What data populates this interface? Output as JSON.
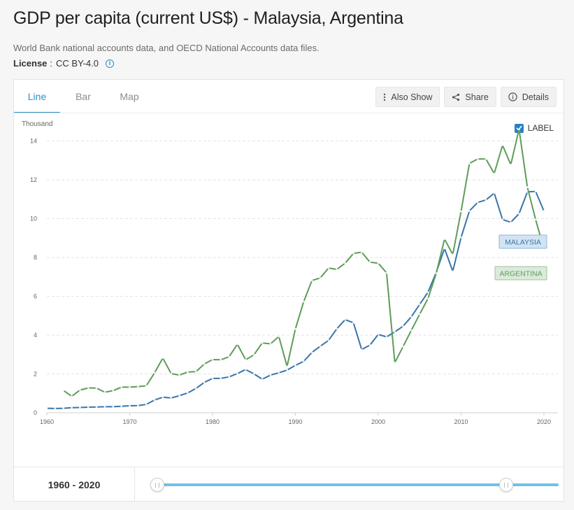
{
  "header": {
    "title": "GDP per capita (current US$) - Malaysia, Argentina",
    "source": "World Bank national accounts data, and OECD National Accounts data files.",
    "license_label": "License",
    "license_sep": ":",
    "license_value": "CC BY-4.0",
    "info_icon": "info-icon"
  },
  "tabs": [
    {
      "label": "Line",
      "active": true
    },
    {
      "label": "Bar",
      "active": false
    },
    {
      "label": "Map",
      "active": false
    }
  ],
  "actions": {
    "also_show": "Also Show",
    "share": "Share",
    "details": "Details"
  },
  "chart_controls": {
    "label_toggle": "LABEL",
    "label_checked": true
  },
  "range": {
    "label": "1960 - 2020",
    "start_year": 1960,
    "end_year": 2020
  },
  "colors": {
    "malaysia": "#3a75a8",
    "argentina": "#5e9c5a",
    "accent": "#2a8fcc"
  },
  "chart_data": {
    "type": "line",
    "title": "",
    "ylabel": "Thousand",
    "xlabel": "",
    "xlim": [
      1960,
      2020
    ],
    "ylim": [
      0,
      15
    ],
    "x_ticks": [
      1960,
      1970,
      1980,
      1990,
      2000,
      2010,
      2020
    ],
    "y_ticks": [
      0,
      2,
      4,
      6,
      8,
      10,
      12,
      14
    ],
    "grid": "horizontal",
    "series": [
      {
        "name": "MALAYSIA",
        "color": "#3a75a8",
        "x": [
          1960,
          1961,
          1962,
          1963,
          1964,
          1965,
          1966,
          1967,
          1968,
          1969,
          1970,
          1971,
          1972,
          1973,
          1974,
          1975,
          1976,
          1977,
          1978,
          1979,
          1980,
          1981,
          1982,
          1983,
          1984,
          1985,
          1986,
          1987,
          1988,
          1989,
          1990,
          1991,
          1992,
          1993,
          1994,
          1995,
          1996,
          1997,
          1998,
          1999,
          2000,
          2001,
          2002,
          2003,
          2004,
          2005,
          2006,
          2007,
          2008,
          2009,
          2010,
          2011,
          2012,
          2013,
          2014,
          2015,
          2016,
          2017,
          2018,
          2019,
          2020
        ],
        "values": [
          0.23,
          0.22,
          0.23,
          0.26,
          0.27,
          0.29,
          0.3,
          0.31,
          0.31,
          0.33,
          0.36,
          0.37,
          0.43,
          0.66,
          0.8,
          0.76,
          0.88,
          1.02,
          1.25,
          1.56,
          1.77,
          1.77,
          1.85,
          2.02,
          2.23,
          2.0,
          1.73,
          1.94,
          2.06,
          2.2,
          2.44,
          2.65,
          3.11,
          3.43,
          3.73,
          4.33,
          4.8,
          4.64,
          3.26,
          3.49,
          4.04,
          3.91,
          4.17,
          4.46,
          4.95,
          5.59,
          6.21,
          7.24,
          8.47,
          7.29,
          9.04,
          10.4,
          10.84,
          10.97,
          11.32,
          9.96,
          9.82,
          10.26,
          11.38,
          11.41,
          10.4
        ]
      },
      {
        "name": "ARGENTINA",
        "color": "#5e9c5a",
        "x": [
          1962,
          1963,
          1964,
          1965,
          1966,
          1967,
          1968,
          1969,
          1970,
          1971,
          1972,
          1973,
          1974,
          1975,
          1976,
          1977,
          1978,
          1979,
          1980,
          1981,
          1982,
          1983,
          1984,
          1985,
          1986,
          1987,
          1988,
          1989,
          1990,
          1991,
          1992,
          1993,
          1994,
          1995,
          1996,
          1997,
          1998,
          1999,
          2000,
          2001,
          2002,
          2003,
          2004,
          2005,
          2006,
          2007,
          2008,
          2009,
          2010,
          2011,
          2012,
          2013,
          2014,
          2015,
          2016,
          2017,
          2018,
          2019,
          2020
        ],
        "values": [
          1.15,
          0.85,
          1.17,
          1.28,
          1.27,
          1.06,
          1.14,
          1.32,
          1.32,
          1.35,
          1.39,
          2.06,
          2.82,
          2.02,
          1.94,
          2.1,
          2.12,
          2.51,
          2.74,
          2.73,
          2.89,
          3.53,
          2.73,
          2.99,
          3.6,
          3.55,
          3.93,
          2.39,
          4.32,
          5.73,
          6.82,
          6.95,
          7.46,
          7.39,
          7.71,
          8.21,
          8.28,
          7.76,
          7.71,
          7.21,
          2.58,
          3.41,
          4.25,
          5.08,
          5.88,
          7.19,
          8.95,
          8.16,
          10.38,
          12.85,
          13.08,
          13.08,
          12.33,
          13.79,
          12.79,
          14.61,
          11.63,
          9.96,
          8.44
        ]
      }
    ],
    "end_labels": [
      "MALAYSIA",
      "ARGENTINA"
    ]
  }
}
